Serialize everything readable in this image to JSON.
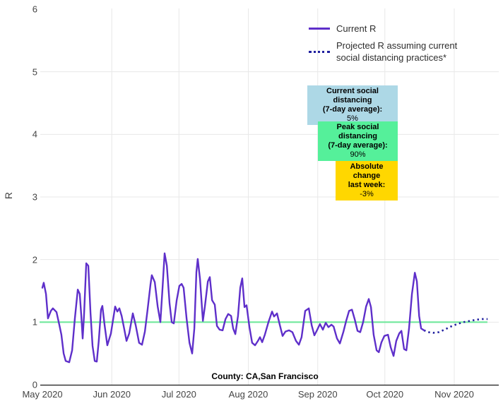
{
  "colors": {
    "current_r_line": "#5E2FCA",
    "projected_r_line": "#20209F",
    "reference_line": "#70E89C",
    "gridline": "#E8E8E8",
    "axis_line": "#1a1a1a",
    "tick_text": "#444444",
    "anno_blue_bg": "#ADD8E6",
    "anno_green_bg": "#55F09A",
    "anno_gold_bg": "#FFD700"
  },
  "legend": {
    "items": [
      {
        "label": "Current R",
        "style": "solid"
      },
      {
        "label": "Projected R assuming current\nsocial distancing practices*",
        "style": "dotted"
      }
    ]
  },
  "annotations": {
    "current": {
      "title_line1": "Current social distancing",
      "title_line2": "(7-day average):",
      "value": "5%"
    },
    "peak": {
      "title_line1": "Peak social distancing",
      "title_line2": "(7-day average):",
      "value": "90%"
    },
    "change": {
      "title_line1": "Absolute change",
      "title_line2": "last week:",
      "value": "-3%"
    }
  },
  "county_label": "County: CA,San Francisco",
  "y_axis": {
    "title": "R",
    "ticks": [
      0,
      1,
      2,
      3,
      4,
      5,
      6
    ]
  },
  "x_axis": {
    "tick_labels": [
      "May 2020",
      "Jun 2020",
      "Jul 2020",
      "Aug 2020",
      "Sep 2020",
      "Oct 2020",
      "Nov 2020"
    ]
  },
  "chart_data": {
    "type": "line",
    "title": "",
    "xlabel": "",
    "ylabel": "R",
    "ylim": [
      0,
      6
    ],
    "grid": true,
    "legend_position": "top-right",
    "caption": "County: CA,San Francisco",
    "x_unit": "days since 2020-05-01",
    "x_tick_days": [
      0,
      31,
      61,
      92,
      123,
      153,
      184
    ],
    "x_tick_labels": [
      "May 2020",
      "Jun 2020",
      "Jul 2020",
      "Aug 2020",
      "Sep 2020",
      "Oct 2020",
      "Nov 2020"
    ],
    "reference_line_y": 1.0,
    "annotation_values": {
      "current_social_distancing_7day": "5%",
      "peak_social_distancing_7day": "90%",
      "absolute_change_last_week": "-3%"
    },
    "series": [
      {
        "name": "Current R",
        "style": "solid",
        "points": [
          [
            0,
            1.55
          ],
          [
            0.6,
            1.63
          ],
          [
            1.6,
            1.45
          ],
          [
            2.5,
            1.06
          ],
          [
            3.8,
            1.18
          ],
          [
            4.7,
            1.22
          ],
          [
            6.3,
            1.16
          ],
          [
            7.6,
            0.95
          ],
          [
            8.5,
            0.8
          ],
          [
            9.5,
            0.5
          ],
          [
            10.4,
            0.38
          ],
          [
            12,
            0.36
          ],
          [
            13.3,
            0.55
          ],
          [
            14.5,
            1.05
          ],
          [
            15.8,
            1.52
          ],
          [
            16.7,
            1.45
          ],
          [
            17.4,
            1.1
          ],
          [
            18,
            0.74
          ],
          [
            18.6,
            1.1
          ],
          [
            19.6,
            1.94
          ],
          [
            20.5,
            1.9
          ],
          [
            21.5,
            1.15
          ],
          [
            22.4,
            0.62
          ],
          [
            23.4,
            0.38
          ],
          [
            24.3,
            0.37
          ],
          [
            25.2,
            0.7
          ],
          [
            26.2,
            1.2
          ],
          [
            26.8,
            1.26
          ],
          [
            27.8,
            0.95
          ],
          [
            29,
            0.63
          ],
          [
            30.6,
            0.82
          ],
          [
            32.5,
            1.25
          ],
          [
            33.5,
            1.17
          ],
          [
            34.4,
            1.22
          ],
          [
            35.4,
            1.1
          ],
          [
            36.3,
            0.94
          ],
          [
            37.6,
            0.7
          ],
          [
            38.8,
            0.82
          ],
          [
            40.4,
            1.14
          ],
          [
            41.7,
            0.95
          ],
          [
            43.2,
            0.67
          ],
          [
            44.5,
            0.64
          ],
          [
            45.8,
            0.85
          ],
          [
            47,
            1.2
          ],
          [
            48.3,
            1.6
          ],
          [
            48.9,
            1.75
          ],
          [
            50.2,
            1.64
          ],
          [
            51.5,
            1.25
          ],
          [
            52.7,
            1
          ],
          [
            53.7,
            1.55
          ],
          [
            54.6,
            2.1
          ],
          [
            55.6,
            1.9
          ],
          [
            56.8,
            1.3
          ],
          [
            57.8,
            1
          ],
          [
            58.7,
            0.98
          ],
          [
            60,
            1.35
          ],
          [
            61.2,
            1.58
          ],
          [
            62.2,
            1.61
          ],
          [
            63.1,
            1.55
          ],
          [
            64.4,
            1.06
          ],
          [
            65.7,
            0.67
          ],
          [
            66.9,
            0.5
          ],
          [
            67.9,
            0.9
          ],
          [
            68.8,
            1.8
          ],
          [
            69.4,
            2.01
          ],
          [
            70.4,
            1.69
          ],
          [
            71.7,
            1.02
          ],
          [
            72.6,
            1.25
          ],
          [
            73.9,
            1.65
          ],
          [
            74.8,
            1.72
          ],
          [
            75.8,
            1.35
          ],
          [
            77,
            1.28
          ],
          [
            78,
            0.94
          ],
          [
            79.2,
            0.88
          ],
          [
            80.5,
            0.87
          ],
          [
            81.8,
            1.05
          ],
          [
            83,
            1.13
          ],
          [
            84.3,
            1.1
          ],
          [
            85.2,
            0.9
          ],
          [
            86.2,
            0.81
          ],
          [
            87.4,
            1.1
          ],
          [
            88.4,
            1.55
          ],
          [
            89.3,
            1.7
          ],
          [
            90.3,
            1.24
          ],
          [
            91.2,
            1.27
          ],
          [
            92.5,
            0.92
          ],
          [
            93.7,
            0.67
          ],
          [
            95,
            0.63
          ],
          [
            96.3,
            0.7
          ],
          [
            97.2,
            0.76
          ],
          [
            98.2,
            0.68
          ],
          [
            99.4,
            0.8
          ],
          [
            101,
            1
          ],
          [
            102.6,
            1.17
          ],
          [
            103.5,
            1.09
          ],
          [
            104.8,
            1.14
          ],
          [
            106.1,
            0.95
          ],
          [
            107.3,
            0.78
          ],
          [
            108.6,
            0.85
          ],
          [
            110.2,
            0.87
          ],
          [
            111.7,
            0.84
          ],
          [
            113.3,
            0.7
          ],
          [
            114.6,
            0.64
          ],
          [
            115.8,
            0.76
          ],
          [
            117.4,
            1.18
          ],
          [
            119,
            1.22
          ],
          [
            120.3,
            0.95
          ],
          [
            121.5,
            0.79
          ],
          [
            122.8,
            0.88
          ],
          [
            124,
            0.97
          ],
          [
            125.3,
            0.88
          ],
          [
            126.6,
            0.99
          ],
          [
            127.8,
            0.92
          ],
          [
            129.1,
            0.96
          ],
          [
            130.1,
            0.93
          ],
          [
            131.6,
            0.74
          ],
          [
            132.9,
            0.66
          ],
          [
            134.5,
            0.85
          ],
          [
            135.7,
            1.02
          ],
          [
            137,
            1.18
          ],
          [
            138.3,
            1.2
          ],
          [
            139.5,
            1.05
          ],
          [
            140.8,
            0.86
          ],
          [
            142,
            0.84
          ],
          [
            143.3,
            1
          ],
          [
            144.6,
            1.25
          ],
          [
            145.8,
            1.37
          ],
          [
            146.8,
            1.24
          ],
          [
            148,
            0.8
          ],
          [
            149.3,
            0.55
          ],
          [
            150.3,
            0.52
          ],
          [
            151.5,
            0.68
          ],
          [
            152.8,
            0.78
          ],
          [
            154.4,
            0.8
          ],
          [
            155.6,
            0.6
          ],
          [
            156.9,
            0.46
          ],
          [
            158.1,
            0.7
          ],
          [
            159.4,
            0.82
          ],
          [
            160.4,
            0.86
          ],
          [
            161.6,
            0.57
          ],
          [
            162.6,
            0.55
          ],
          [
            163.8,
            0.9
          ],
          [
            165.1,
            1.45
          ],
          [
            166.4,
            1.79
          ],
          [
            167.3,
            1.65
          ],
          [
            168.3,
            1.1
          ],
          [
            169.2,
            0.9
          ],
          [
            170.5,
            0.87
          ]
        ]
      },
      {
        "name": "Projected R assuming current social distancing practices*",
        "style": "dotted",
        "points": [
          [
            170.5,
            0.87
          ],
          [
            172.4,
            0.84
          ],
          [
            174.6,
            0.83
          ],
          [
            177.1,
            0.84
          ],
          [
            179.6,
            0.88
          ],
          [
            182.5,
            0.93
          ],
          [
            185.3,
            0.97
          ],
          [
            188.1,
            1.0
          ],
          [
            191,
            1.02
          ],
          [
            193.8,
            1.04
          ],
          [
            196.6,
            1.05
          ],
          [
            198.9,
            1.05
          ]
        ]
      }
    ]
  }
}
